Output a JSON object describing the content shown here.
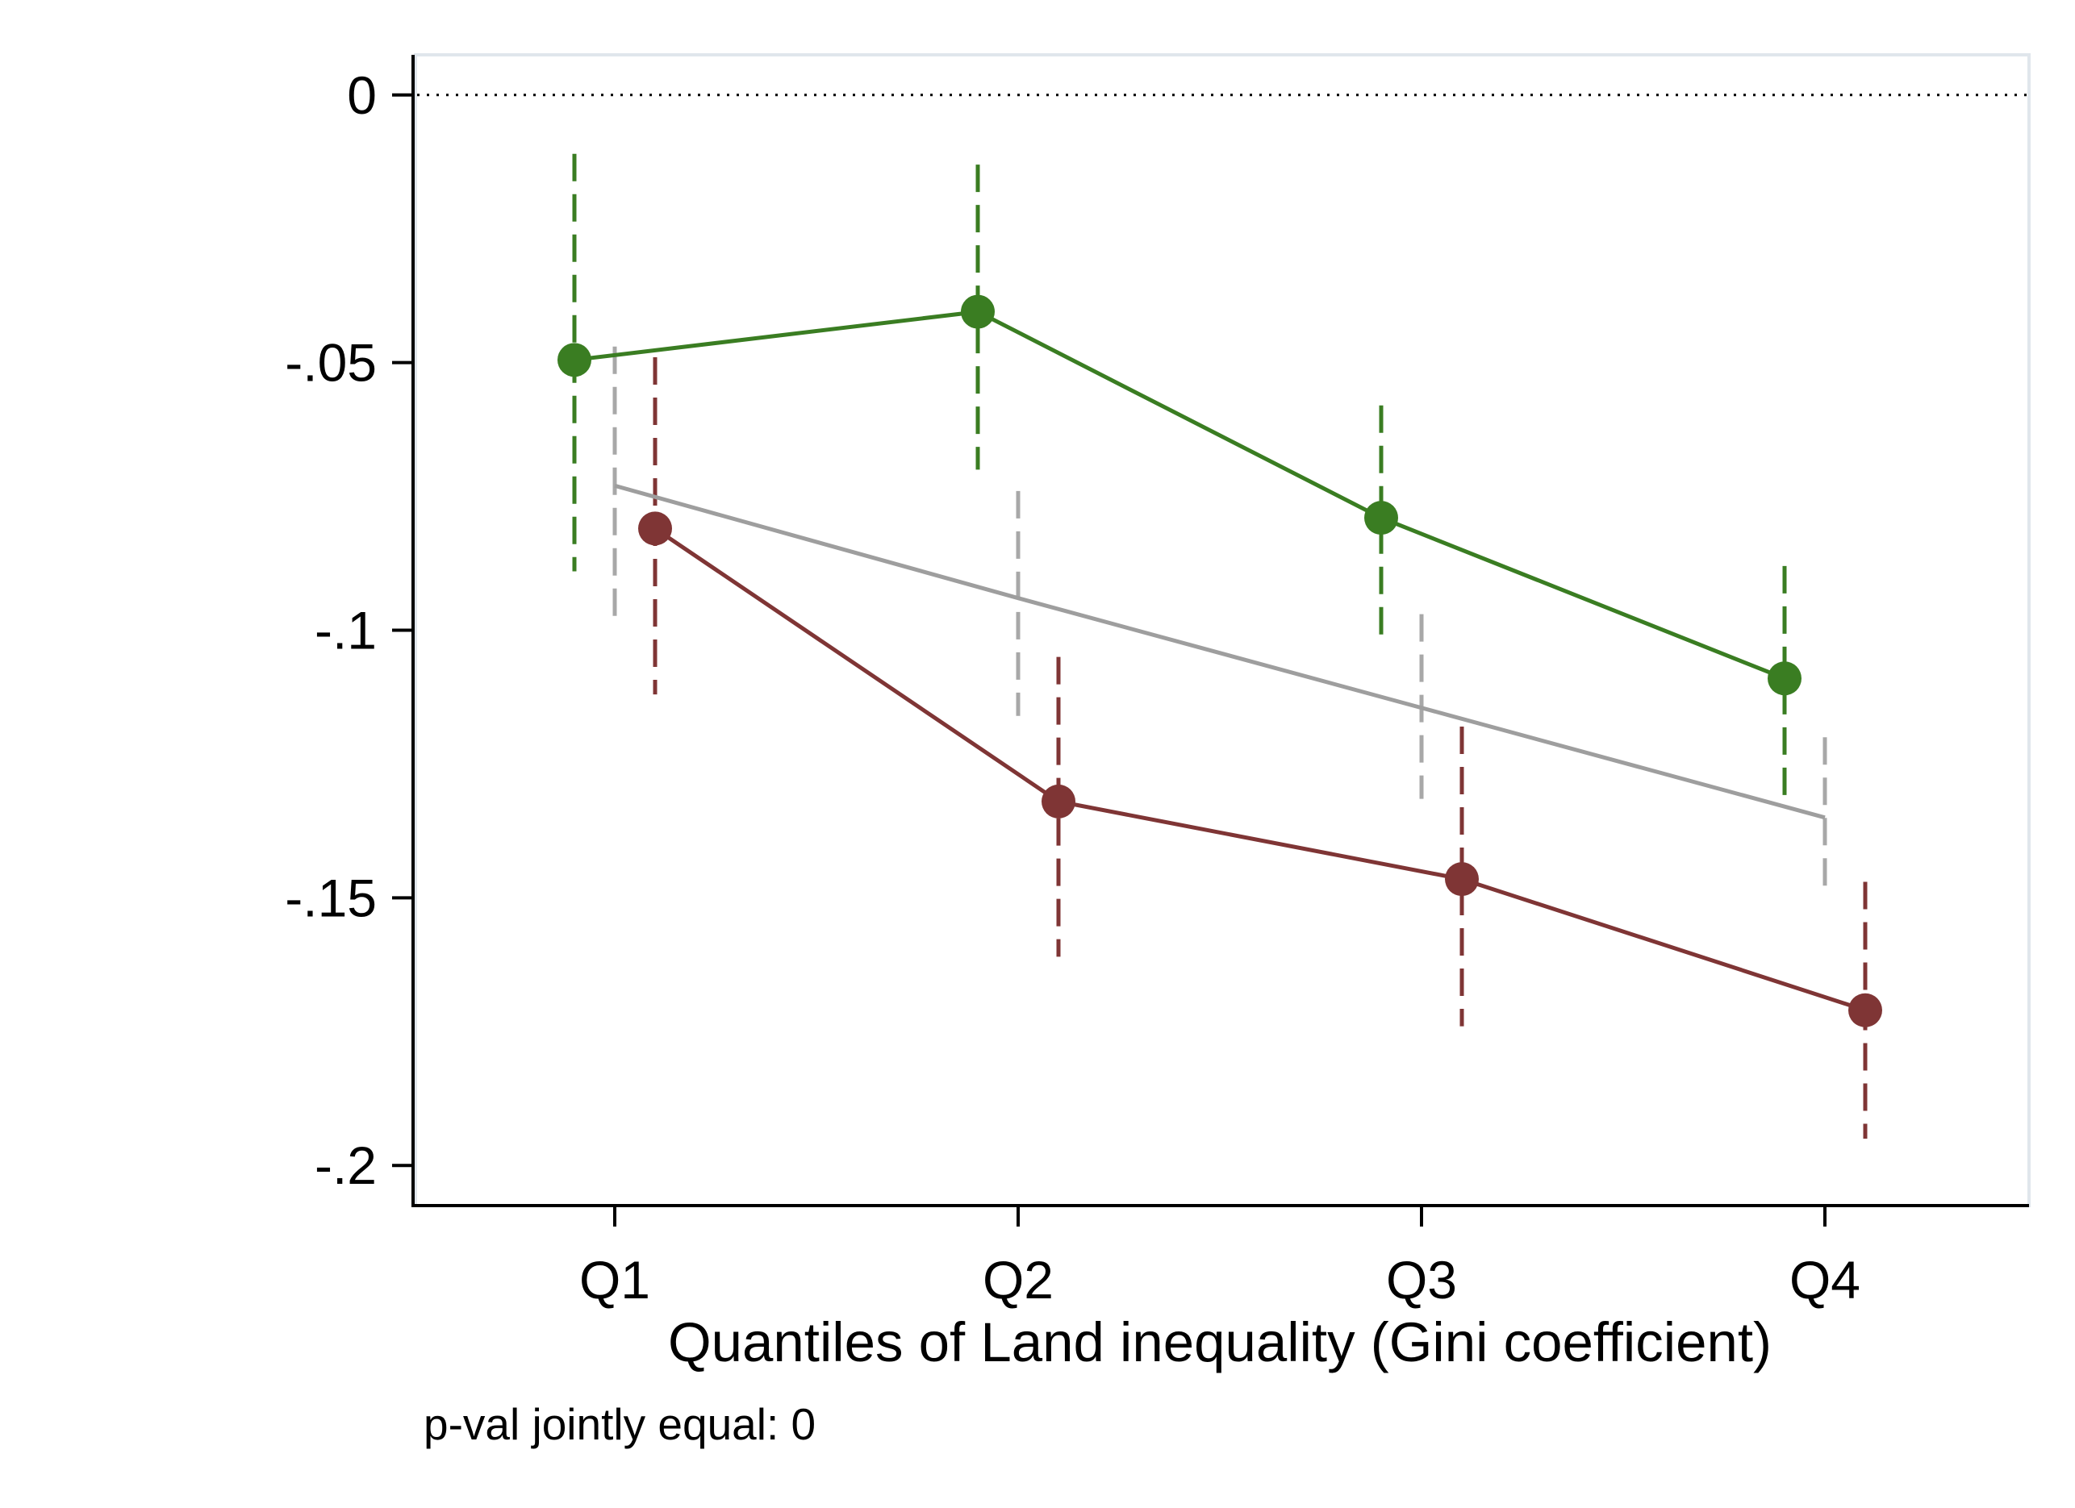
{
  "chart_data": {
    "type": "line",
    "title": "",
    "xlabel": "Quantiles of Land inequality (Gini coefficient)",
    "ylabel": "",
    "categories": [
      "Q1",
      "Q2",
      "Q3",
      "Q4"
    ],
    "ylim": [
      -0.2075,
      0.0075
    ],
    "yticks": [
      0,
      -0.05,
      -0.1,
      -0.15,
      -0.2
    ],
    "ytick_labels": [
      "0",
      "-.05",
      "-.1",
      "-.15",
      "-.2"
    ],
    "reference_line": 0,
    "grid": false,
    "legend": "none",
    "note": "p-val jointly equal: 0",
    "series": [
      {
        "color": "#3a7d22",
        "error_bar_color": "#3a7d22",
        "markers": true,
        "x_offset": -0.1,
        "values": [
          -0.0495,
          -0.0405,
          -0.079,
          -0.109
        ],
        "ci_low": [
          -0.089,
          -0.07,
          -0.101,
          -0.131
        ],
        "ci_high": [
          -0.011,
          -0.013,
          -0.058,
          -0.088
        ]
      },
      {
        "color": "#9e9e9e",
        "error_bar_color": "#a8a8a8",
        "markers": false,
        "x_offset": 0,
        "values": [
          -0.073,
          -0.094,
          -0.1145,
          -0.135
        ],
        "ci_low": [
          -0.099,
          -0.116,
          -0.1315,
          -0.15
        ],
        "ci_high": [
          -0.047,
          -0.074,
          -0.097,
          -0.12
        ]
      },
      {
        "color": "#7f3535",
        "error_bar_color": "#7f3535",
        "markers": true,
        "x_offset": 0.1,
        "values": [
          -0.081,
          -0.132,
          -0.1465,
          -0.171
        ],
        "ci_low": [
          -0.112,
          -0.161,
          -0.174,
          -0.195
        ],
        "ci_high": [
          -0.049,
          -0.105,
          -0.118,
          -0.147
        ]
      }
    ]
  },
  "colors": {
    "background": "#ffffff",
    "axis": "#000000",
    "plot_frame": "#e0e6ec"
  }
}
